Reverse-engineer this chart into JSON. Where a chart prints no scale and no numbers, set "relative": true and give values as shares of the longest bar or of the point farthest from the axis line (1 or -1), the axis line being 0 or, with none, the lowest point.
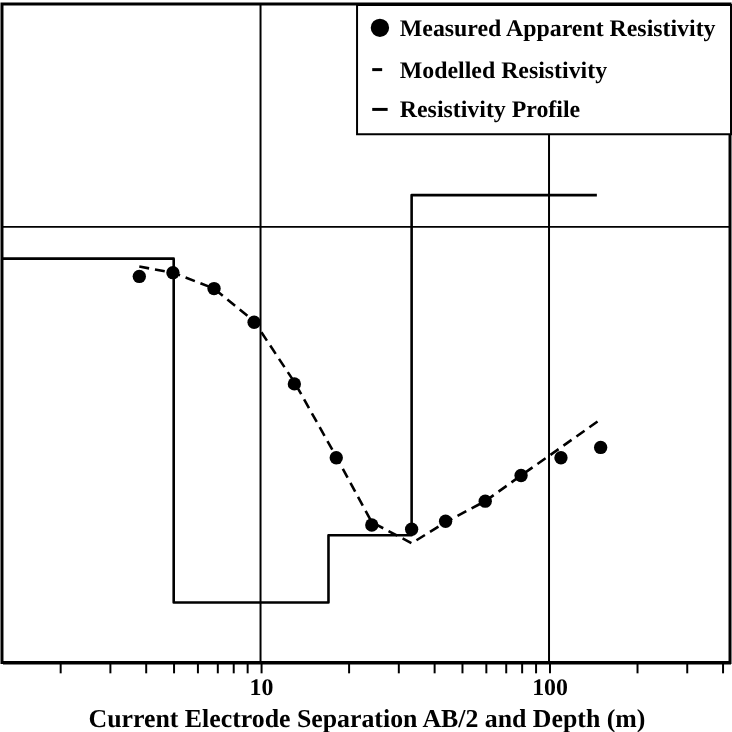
{
  "chart_data": {
    "type": "line",
    "xlabel": "Current Electrode Separation AB/2 and Depth (m)",
    "relative": true,
    "log": "x",
    "grid": "x",
    "legend": "top right",
    "tick_labels": "x",
    "xlim": [
      1.27,
      424
    ],
    "xticks": [
      {
        "value": 2,
        "label": null
      },
      {
        "value": 3,
        "label": null
      },
      {
        "value": 4,
        "label": null
      },
      {
        "value": 5,
        "label": null
      },
      {
        "value": 6,
        "label": null
      },
      {
        "value": 7,
        "label": null
      },
      {
        "value": 8,
        "label": null
      },
      {
        "value": 9,
        "label": null
      },
      10,
      {
        "value": 20,
        "label": null
      },
      {
        "value": 30,
        "label": null
      },
      {
        "value": 40,
        "label": null
      },
      {
        "value": 50,
        "label": null
      },
      {
        "value": 60,
        "label": null
      },
      {
        "value": 70,
        "label": null
      },
      {
        "value": 80,
        "label": null
      },
      {
        "value": 90,
        "label": null
      },
      100,
      {
        "value": 200,
        "label": null
      },
      {
        "value": 300,
        "label": null
      },
      {
        "value": 400,
        "label": null
      }
    ],
    "ref_lines": [
      {
        "axis": "y",
        "value": 0.932,
        "color": "#000000"
      }
    ],
    "series": [
      {
        "name": "Measured Apparent Resistivity",
        "type": "scatter",
        "marker": "circle",
        "color": "#000000",
        "x": [
          3.8,
          4.97,
          6.9,
          9.5,
          13.1,
          18.3,
          24.3,
          33.4,
          43.8,
          60.1,
          80,
          110,
          151
        ],
        "values": [
          0.826,
          0.834,
          0.8,
          0.728,
          0.596,
          0.438,
          0.294,
          0.285,
          0.302,
          0.345,
          0.4,
          0.438,
          0.46
        ]
      },
      {
        "name": "Modelled Resistivity",
        "line_style": "dashed",
        "color": "#000000",
        "x": [
          3.8,
          4.97,
          6.9,
          9.5,
          13.1,
          18.3,
          24.3,
          33.4,
          43.8,
          60.1,
          80,
          110,
          150
        ],
        "values": [
          0.847,
          0.834,
          0.8,
          0.73,
          0.6,
          0.44,
          0.3,
          0.255,
          0.3,
          0.345,
          0.4,
          0.46,
          0.519
        ]
      },
      {
        "name": "Resistivity Profile",
        "line_style": "solid",
        "color": "#000000",
        "x": [
          1.27,
          5.0,
          5.0,
          17.2,
          17.2,
          33.4,
          33.4,
          146.5
        ],
        "values": [
          0.864,
          0.864,
          0.128,
          0.128,
          0.272,
          0.272,
          1.0,
          1.0
        ]
      }
    ]
  }
}
